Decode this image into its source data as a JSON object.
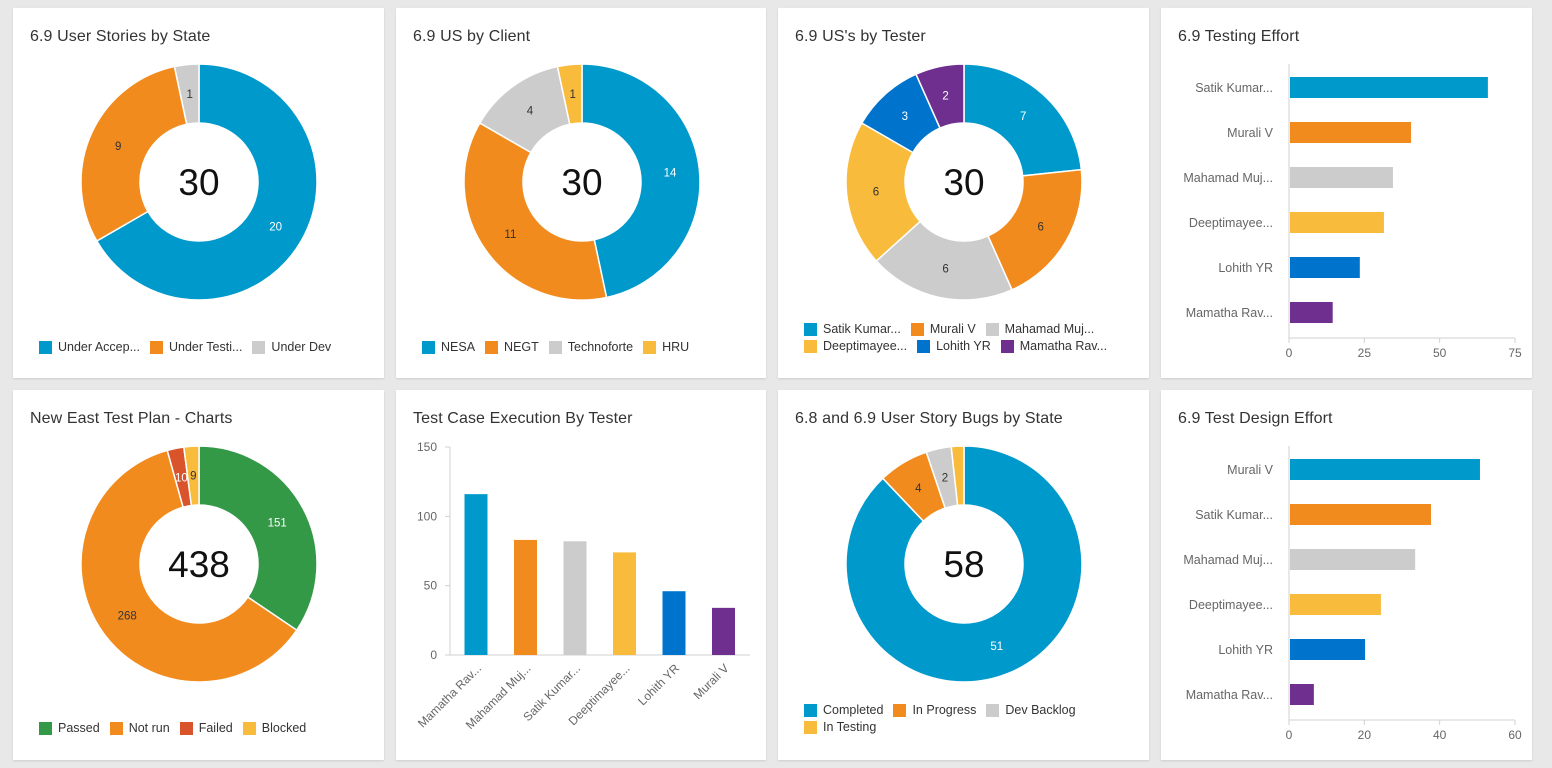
{
  "palette": {
    "blue": "#0099cc",
    "orange": "#f28b1e",
    "gray": "#cccccc",
    "yellow": "#f8bb3c",
    "darkblue": "#0074cc",
    "purple": "#6f2f8f",
    "green": "#339947",
    "red": "#d9532b"
  },
  "chart_data": [
    {
      "id": "us-by-state",
      "type": "pie",
      "title": "6.9 User Stories by State",
      "center_label": "30",
      "slices": [
        {
          "label": "Under Accep...",
          "value": 20,
          "color": "#0099cc",
          "label_color": "#ffffff"
        },
        {
          "label": "Under Testi...",
          "value": 9,
          "color": "#f28b1e",
          "label_color": "#333333"
        },
        {
          "label": "Under Dev",
          "value": 1,
          "color": "#cccccc",
          "label_color": "#333333"
        }
      ],
      "legend": "bottom"
    },
    {
      "id": "us-by-client",
      "type": "pie",
      "title": "6.9 US by Client",
      "center_label": "30",
      "slices": [
        {
          "label": "NESA",
          "value": 14,
          "color": "#0099cc",
          "label_color": "#ffffff"
        },
        {
          "label": "NEGT",
          "value": 11,
          "color": "#f28b1e",
          "label_color": "#333333"
        },
        {
          "label": "Technoforte",
          "value": 4,
          "color": "#cccccc",
          "label_color": "#333333"
        },
        {
          "label": "HRU",
          "value": 1,
          "color": "#f8bb3c",
          "label_color": "#333333"
        }
      ],
      "legend": "bottom"
    },
    {
      "id": "us-by-tester",
      "type": "pie",
      "title": "6.9 US's by Tester",
      "center_label": "30",
      "slices": [
        {
          "label": "Satik Kumar...",
          "value": 7,
          "color": "#0099cc",
          "label_color": "#ffffff"
        },
        {
          "label": "Murali V",
          "value": 6,
          "color": "#f28b1e",
          "label_color": "#333333"
        },
        {
          "label": "Mahamad Muj...",
          "value": 6,
          "color": "#cccccc",
          "label_color": "#333333"
        },
        {
          "label": "Deeptimayee...",
          "value": 6,
          "color": "#f8bb3c",
          "label_color": "#333333"
        },
        {
          "label": "Lohith YR",
          "value": 3,
          "color": "#0074cc",
          "label_color": "#ffffff"
        },
        {
          "label": "Mamatha Rav...",
          "value": 2,
          "color": "#6f2f8f",
          "label_color": "#ffffff"
        }
      ],
      "legend": "bottom"
    },
    {
      "id": "testing-effort",
      "type": "bar",
      "orientation": "horizontal",
      "title": "6.9 Testing Effort",
      "categories": [
        "Satik Kumar...",
        "Murali V",
        "Mahamad Muj...",
        "Deeptimayee...",
        "Lohith YR",
        "Mamatha Rav..."
      ],
      "values": [
        66,
        40.5,
        34.5,
        31.5,
        23.5,
        14.5
      ],
      "colors": [
        "#0099cc",
        "#f28b1e",
        "#cccccc",
        "#f8bb3c",
        "#0074cc",
        "#6f2f8f"
      ],
      "xlim": [
        0,
        75
      ],
      "xticks": [
        "0",
        "25",
        "50",
        "75"
      ],
      "xtick_values": [
        0,
        25,
        50,
        75
      ]
    },
    {
      "id": "test-plan",
      "type": "pie",
      "title": "New East Test Plan - Charts",
      "center_label": "438",
      "slices": [
        {
          "label": "Passed",
          "value": 151,
          "color": "#339947",
          "label_color": "#ffffff"
        },
        {
          "label": "Not run",
          "value": 268,
          "color": "#f28b1e",
          "label_color": "#333333"
        },
        {
          "label": "Failed",
          "value": 10,
          "color": "#d9532b",
          "label_color": "#ffffff"
        },
        {
          "label": "Blocked",
          "value": 9,
          "color": "#f8bb3c",
          "label_color": "#333333"
        }
      ],
      "legend": "bottom"
    },
    {
      "id": "execution-by-tester",
      "type": "bar",
      "orientation": "vertical",
      "title": "Test Case Execution By Tester",
      "categories": [
        "Mamatha Rav...",
        "Mahamad Muj...",
        "Satik Kumar...",
        "Deeptimayee...",
        "Lohith YR",
        "Murali V"
      ],
      "values": [
        116,
        83,
        82,
        74,
        46,
        34
      ],
      "colors": [
        "#0099cc",
        "#f28b1e",
        "#cccccc",
        "#f8bb3c",
        "#0074cc",
        "#6f2f8f"
      ],
      "ylim": [
        0,
        150
      ],
      "yticks": [
        "0",
        "50",
        "100",
        "150"
      ],
      "ytick_values": [
        0,
        50,
        100,
        150
      ]
    },
    {
      "id": "bugs-by-state",
      "type": "pie",
      "title": "6.8 and 6.9 User Story Bugs by State",
      "center_label": "58",
      "slices": [
        {
          "label": "Completed",
          "value": 51,
          "color": "#0099cc",
          "label_color": "#ffffff"
        },
        {
          "label": "In Progress",
          "value": 4,
          "color": "#f28b1e",
          "label_color": "#333333"
        },
        {
          "label": "Dev Backlog",
          "value": 2,
          "color": "#cccccc",
          "label_color": "#333333"
        },
        {
          "label": "In Testing",
          "value": 1,
          "color": "#f8bb3c",
          "label_color": "#333333",
          "hide_value": true
        }
      ],
      "legend": "bottom"
    },
    {
      "id": "test-design-effort",
      "type": "bar",
      "orientation": "horizontal",
      "title": "6.9 Test Design Effort",
      "categories": [
        "Murali V",
        "Satik Kumar...",
        "Mahamad Muj...",
        "Deeptimayee...",
        "Lohith YR",
        "Mamatha Rav..."
      ],
      "values": [
        50.7,
        37.7,
        33.5,
        24.4,
        20.2,
        6.6
      ],
      "colors": [
        "#0099cc",
        "#f28b1e",
        "#cccccc",
        "#f8bb3c",
        "#0074cc",
        "#6f2f8f"
      ],
      "xlim": [
        0,
        60
      ],
      "xticks": [
        "0",
        "20",
        "40",
        "60"
      ],
      "xtick_values": [
        0,
        20,
        40,
        60
      ]
    }
  ]
}
